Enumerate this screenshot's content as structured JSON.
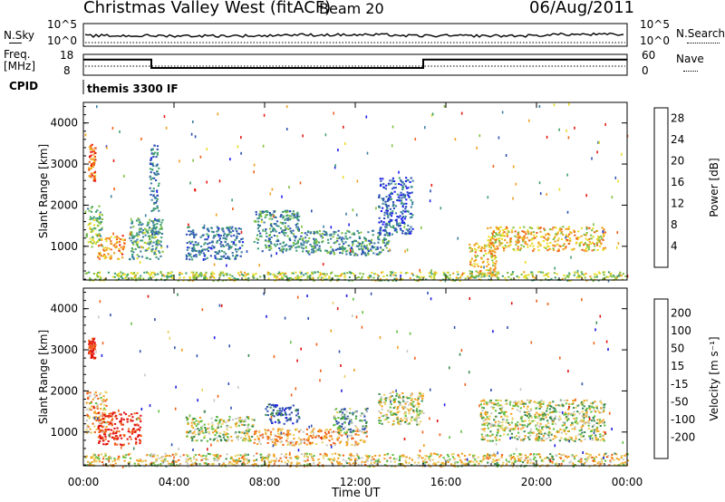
{
  "header": {
    "title": "Christmas Valley West (fitACF)",
    "beam": "Beam 20",
    "date": "06/Aug/2011"
  },
  "strips": {
    "nsky_label": "N.Sky",
    "nsearch_label": "N.Search",
    "noise_ticks": [
      "10^5",
      "10^0"
    ],
    "freq_label": "Freq.",
    "freq_unit": "[MHz]",
    "freq_ticks": [
      "18",
      "8"
    ],
    "nave_label": "Nave",
    "nave_ticks": [
      "60",
      "0"
    ],
    "cpid_label": "CPID",
    "cpid_value": "themis 3300 IF"
  },
  "colors": {
    "power": [
      "#1c1cf0",
      "#2c50b4",
      "#3c7ea0",
      "#40a070",
      "#80c040",
      "#e8dc28",
      "#f0a020",
      "#f06018",
      "#e81810"
    ],
    "velocity": [
      "#1c1ce0",
      "#3050b0",
      "#3a8a50",
      "#60c040",
      "#c8c8c0",
      "#e8d060",
      "#f0a020",
      "#f06018",
      "#e01010"
    ]
  },
  "chart_data": [
    {
      "type": "heatmap",
      "title": "",
      "xlabel": "Time UT",
      "ylabel": "Slant Range [km]",
      "x_ticks": [
        "00:00",
        "04:00",
        "08:00",
        "12:00",
        "16:00",
        "20:00",
        "00:00"
      ],
      "xlim_hours": [
        0,
        24
      ],
      "y_ticks": [
        "1000",
        "2000",
        "3000",
        "4000"
      ],
      "ylim": [
        180,
        4500
      ],
      "colorbar_label": "Power [dB]",
      "colorbar_ticks": [
        "4",
        "8",
        "12",
        "16",
        "20",
        "24",
        "28"
      ],
      "colorbar_range": [
        0,
        30
      ],
      "series": [
        {
          "time_hours": [
            0.1,
            0.8
          ],
          "range_km": [
            1000,
            2000
          ],
          "value": 14
        },
        {
          "time_hours": [
            0.6,
            1.8
          ],
          "range_km": [
            700,
            1300
          ],
          "value": 22
        },
        {
          "time_hours": [
            0.2,
            0.5
          ],
          "range_km": [
            2600,
            3500
          ],
          "value": 24
        },
        {
          "time_hours": [
            2.0,
            3.5
          ],
          "range_km": [
            700,
            1700
          ],
          "value": 12
        },
        {
          "time_hours": [
            2.9,
            3.3
          ],
          "range_km": [
            1300,
            3500
          ],
          "value": 8
        },
        {
          "time_hours": [
            4.5,
            7.0
          ],
          "range_km": [
            700,
            1500
          ],
          "value": 8
        },
        {
          "time_hours": [
            7.5,
            9.5
          ],
          "range_km": [
            900,
            1900
          ],
          "value": 10
        },
        {
          "time_hours": [
            9.5,
            13.5
          ],
          "range_km": [
            800,
            1400
          ],
          "value": 10
        },
        {
          "time_hours": [
            13.0,
            14.5
          ],
          "range_km": [
            1300,
            2700
          ],
          "value": 6
        },
        {
          "time_hours": [
            17.0,
            18.2
          ],
          "range_km": [
            300,
            1100
          ],
          "value": 20
        },
        {
          "time_hours": [
            17.8,
            23.0
          ],
          "range_km": [
            900,
            1500
          ],
          "value": 20
        },
        {
          "time_hours": [
            0.0,
            24.0
          ],
          "range_km": [
            180,
            400
          ],
          "value": 16
        }
      ]
    },
    {
      "type": "heatmap",
      "title": "",
      "xlabel": "Time UT",
      "ylabel": "Slant Range [km]",
      "x_ticks": [
        "00:00",
        "04:00",
        "08:00",
        "12:00",
        "16:00",
        "20:00",
        "00:00"
      ],
      "xlim_hours": [
        0,
        24
      ],
      "y_ticks": [
        "1000",
        "2000",
        "3000",
        "4000"
      ],
      "ylim": [
        180,
        4500
      ],
      "colorbar_label": "Velocity [m s⁻¹]",
      "colorbar_ticks": [
        "200",
        "100",
        "50",
        "15",
        "-15",
        "-50",
        "-100",
        "-200"
      ],
      "colorbar_range": [
        -250,
        250
      ],
      "series": [
        {
          "time_hours": [
            0.1,
            1.0
          ],
          "range_km": [
            1000,
            2000
          ],
          "value": -60
        },
        {
          "time_hours": [
            0.6,
            2.5
          ],
          "range_km": [
            700,
            1500
          ],
          "value": -220
        },
        {
          "time_hours": [
            0.2,
            0.5
          ],
          "range_km": [
            2800,
            3300
          ],
          "value": -220
        },
        {
          "time_hours": [
            4.5,
            7.5
          ],
          "range_km": [
            800,
            1400
          ],
          "value": 0
        },
        {
          "time_hours": [
            8.0,
            9.5
          ],
          "range_km": [
            1200,
            1700
          ],
          "value": 150
        },
        {
          "time_hours": [
            7.5,
            12.5
          ],
          "range_km": [
            700,
            1100
          ],
          "value": -80
        },
        {
          "time_hours": [
            11.0,
            12.5
          ],
          "range_km": [
            1000,
            1600
          ],
          "value": 60
        },
        {
          "time_hours": [
            13.0,
            15.0
          ],
          "range_km": [
            1200,
            2000
          ],
          "value": 0
        },
        {
          "time_hours": [
            17.5,
            23.0
          ],
          "range_km": [
            800,
            1800
          ],
          "value": 0
        },
        {
          "time_hours": [
            0.0,
            24.0
          ],
          "range_km": [
            180,
            500
          ],
          "value": -30
        }
      ]
    },
    {
      "type": "line",
      "name": "Freq. [MHz]",
      "x_hours": [
        0,
        3,
        3,
        15,
        15,
        24
      ],
      "y": [
        15.5,
        15.5,
        11.5,
        11.5,
        15.5,
        15.5
      ],
      "ylim": [
        8,
        18
      ]
    }
  ]
}
